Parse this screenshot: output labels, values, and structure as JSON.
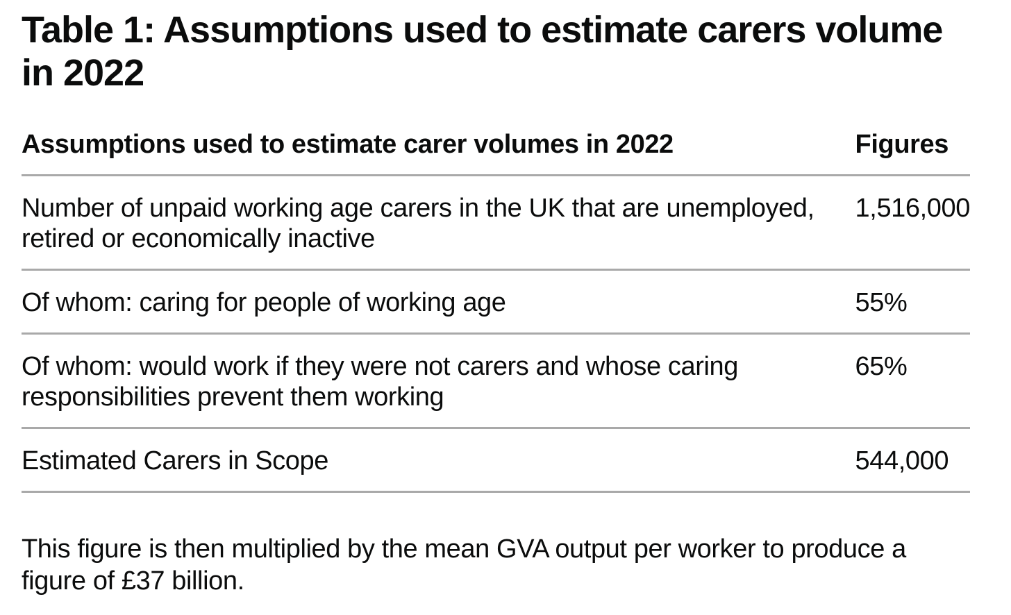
{
  "page": {
    "title": "Table 1: Assumptions used to estimate carers volume in 2022",
    "footnote": "This figure is then multiplied by the mean GVA output per worker to produce a figure of £37 billion."
  },
  "table": {
    "columns": [
      {
        "label": "Assumptions used to estimate carer volumes in 2022"
      },
      {
        "label": "Figures"
      }
    ],
    "rows": [
      {
        "assumption": "Number of unpaid working age carers in the UK that are unemployed, retired or economically inactive",
        "figure": "1,516,000"
      },
      {
        "assumption": "Of whom: caring for people of working age",
        "figure": "55%"
      },
      {
        "assumption": "Of whom: would work if they were not carers and whose caring responsibilities prevent them working",
        "figure": "65%"
      },
      {
        "assumption": "Estimated Carers in Scope",
        "figure": "544,000"
      }
    ]
  },
  "chart_data": {
    "type": "table",
    "title": "Table 1: Assumptions used to estimate carers volume in 2022",
    "columns": [
      "Assumptions used to estimate carer volumes in 2022",
      "Figures"
    ],
    "rows": [
      [
        "Number of unpaid working age carers in the UK that are unemployed, retired or economically inactive",
        "1,516,000"
      ],
      [
        "Of whom: caring for people of working age",
        "55%"
      ],
      [
        "Of whom: would work if they were not carers and whose caring responsibilities prevent them working",
        "65%"
      ],
      [
        "Estimated Carers in Scope",
        "544,000"
      ]
    ],
    "annotations": [
      "This figure is then multiplied by the mean GVA output per worker to produce a figure of £37 billion."
    ]
  },
  "colors": {
    "text": "#0b0c0c",
    "border": "#a9a9a9",
    "background": "#ffffff"
  }
}
